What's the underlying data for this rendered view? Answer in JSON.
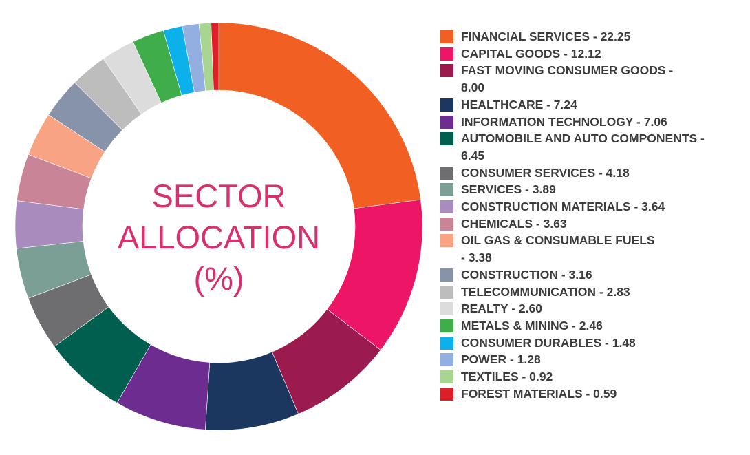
{
  "chart_data": {
    "type": "pie",
    "title": "SECTOR ALLOCATION (%)",
    "title_lines": [
      "SECTOR",
      "ALLOCATION",
      "(%)"
    ],
    "slices": [
      {
        "label": "FINANCIAL SERVICES",
        "value": 22.25,
        "display": "FINANCIAL SERVICES - 22.25",
        "color": "#f15f22"
      },
      {
        "label": "CAPITAL GOODS",
        "value": 12.12,
        "display": "CAPITAL GOODS - 12.12",
        "color": "#ed1565"
      },
      {
        "label": "FAST MOVING CONSUMER GOODS",
        "value": 8.0,
        "display": "FAST MOVING CONSUMER GOODS -\n8.00",
        "color": "#9c1b4e"
      },
      {
        "label": "HEALTHCARE",
        "value": 7.24,
        "display": "HEALTHCARE - 7.24",
        "color": "#1b365f"
      },
      {
        "label": "INFORMATION TECHNOLOGY",
        "value": 7.06,
        "display": "INFORMATION TECHNOLOGY - 7.06",
        "color": "#6d2c8f"
      },
      {
        "label": "AUTOMOBILE AND AUTO COMPONENTS",
        "value": 6.45,
        "display": "AUTOMOBILE AND AUTO COMPONENTS -\n6.45",
        "color": "#005f4e"
      },
      {
        "label": "CONSUMER SERVICES",
        "value": 4.18,
        "display": "CONSUMER SERVICES - 4.18",
        "color": "#6e6e70"
      },
      {
        "label": "SERVICES",
        "value": 3.89,
        "display": "SERVICES - 3.89",
        "color": "#7b9f95"
      },
      {
        "label": "CONSTRUCTION MATERIALS",
        "value": 3.64,
        "display": "CONSTRUCTION MATERIALS - 3.64",
        "color": "#a98bbe"
      },
      {
        "label": "CHEMICALS",
        "value": 3.63,
        "display": "CHEMICALS - 3.63",
        "color": "#c98498"
      },
      {
        "label": "OIL GAS & CONSUMABLE FUELS",
        "value": 3.38,
        "display": "OIL GAS & CONSUMABLE FUELS\n- 3.38",
        "color": "#f7a384"
      },
      {
        "label": "CONSTRUCTION",
        "value": 3.16,
        "display": "CONSTRUCTION - 3.16",
        "color": "#8693a9"
      },
      {
        "label": "TELECOMMUNICATION",
        "value": 2.83,
        "display": "TELECOMMUNICATION - 2.83",
        "color": "#bdbdbd"
      },
      {
        "label": "REALTY",
        "value": 2.6,
        "display": "REALTY - 2.60",
        "color": "#dcdcdc"
      },
      {
        "label": "METALS & MINING",
        "value": 2.46,
        "display": "METALS & MINING - 2.46",
        "color": "#3fad49"
      },
      {
        "label": "CONSUMER DURABLES",
        "value": 1.48,
        "display": "CONSUMER DURABLES - 1.48",
        "color": "#0cb0eb"
      },
      {
        "label": "POWER",
        "value": 1.28,
        "display": "POWER - 1.28",
        "color": "#93aee0"
      },
      {
        "label": "TEXTILES",
        "value": 0.92,
        "display": "TEXTILES - 0.92",
        "color": "#a9d592"
      },
      {
        "label": "FOREST MATERIALS",
        "value": 0.59,
        "display": "FOREST MATERIALS - 0.59",
        "color": "#dc1f26"
      }
    ],
    "legend_placement": "right"
  }
}
